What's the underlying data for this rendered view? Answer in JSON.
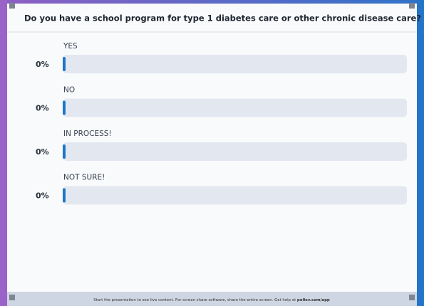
{
  "chart_data": {
    "type": "bar",
    "orientation": "horizontal",
    "title": "Do you have a school program for type 1 diabetes care or other chronic disease care?",
    "categories": [
      "YES",
      "NO",
      "IN PROCESS!",
      "NOT SURE!"
    ],
    "values": [
      0,
      0,
      0,
      0
    ],
    "value_labels": [
      "0%",
      "0%",
      "0%",
      "0%"
    ],
    "color": "#1b75c9",
    "xlim": [
      0,
      100
    ]
  },
  "footer": {
    "text": "Start the presentation to see live content. For screen share software, share the entire screen. Get help at",
    "link": "pollev.com/app"
  }
}
